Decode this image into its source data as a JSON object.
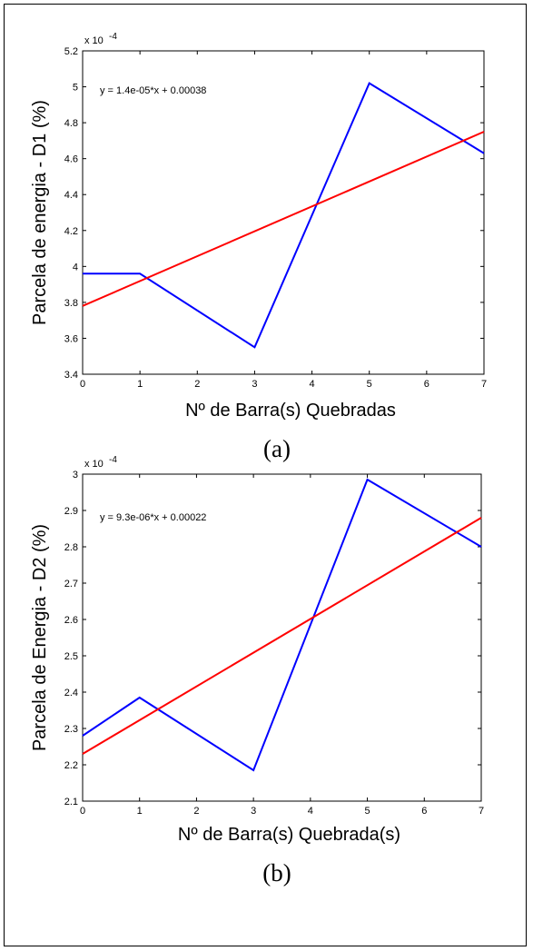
{
  "chart_data": [
    {
      "type": "line",
      "xlabel": "Nº de Barra(s) Quebradas",
      "ylabel": "Parcela de energia - D1 (%)",
      "y_multiplier": "x 10",
      "y_multiplier_exp": "-4",
      "annotation": "y = 1.4e-05*x + 0.00038",
      "caption": "(a)",
      "xlim": [
        0,
        7
      ],
      "ylim": [
        3.4,
        5.2
      ],
      "xticks": [
        0,
        1,
        2,
        3,
        4,
        5,
        6,
        7
      ],
      "yticks": [
        3.4,
        3.6,
        3.8,
        4.0,
        4.2,
        4.4,
        4.6,
        4.8,
        5.0,
        5.2
      ],
      "ytick_labels": [
        "3.4",
        "3.6",
        "3.8",
        "4",
        "4.2",
        "4.4",
        "4.6",
        "4.8",
        "5",
        "5.2"
      ],
      "series": [
        {
          "color": "#0000ff",
          "x": [
            0,
            1,
            3,
            5,
            7
          ],
          "y": [
            3.96,
            3.96,
            3.55,
            5.02,
            4.63
          ]
        },
        {
          "color": "#ff0000",
          "x": [
            0,
            7
          ],
          "y": [
            3.78,
            4.75
          ]
        }
      ]
    },
    {
      "type": "line",
      "xlabel": "Nº de Barra(s) Quebrada(s)",
      "ylabel": "Parcela de Energia - D2 (%)",
      "y_multiplier": "x 10",
      "y_multiplier_exp": "-4",
      "annotation": "y = 9.3e-06*x + 0.00022",
      "caption": "(b)",
      "xlim": [
        0,
        7
      ],
      "ylim": [
        2.1,
        3.0
      ],
      "xticks": [
        0,
        1,
        2,
        3,
        4,
        5,
        6,
        7
      ],
      "yticks": [
        2.1,
        2.2,
        2.3,
        2.4,
        2.5,
        2.6,
        2.7,
        2.8,
        2.9,
        3.0
      ],
      "ytick_labels": [
        "2.1",
        "2.2",
        "2.3",
        "2.4",
        "2.5",
        "2.6",
        "2.7",
        "2.8",
        "2.9",
        "3"
      ],
      "series": [
        {
          "color": "#0000ff",
          "x": [
            0,
            1,
            3,
            5,
            7
          ],
          "y": [
            2.28,
            2.385,
            2.185,
            2.985,
            2.8
          ]
        },
        {
          "color": "#ff0000",
          "x": [
            0,
            7
          ],
          "y": [
            2.23,
            2.88
          ]
        }
      ]
    }
  ]
}
